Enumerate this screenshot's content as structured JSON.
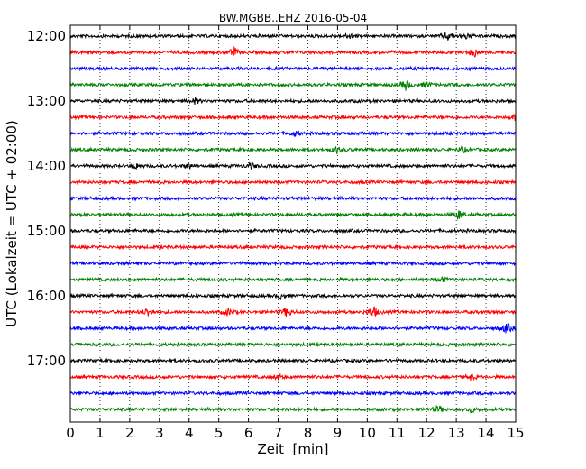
{
  "chart_data": {
    "type": "line",
    "title": "BW.MGBB..EHZ 2016-05-04",
    "xlabel": "Zeit  [min]",
    "ylabel": "UTC (Lokalzeit = UTC + 02:00)",
    "xlim": [
      0,
      15
    ],
    "x_ticks": [
      "0",
      "1",
      "2",
      "3",
      "4",
      "5",
      "6",
      "7",
      "8",
      "9",
      "10",
      "11",
      "12",
      "13",
      "14",
      "15"
    ],
    "y_tick_labels": [
      "12:00",
      "13:00",
      "14:00",
      "15:00",
      "16:00",
      "17:00"
    ],
    "grid": true,
    "series_colors": [
      "#000000",
      "#ff0000",
      "#0000ff",
      "#008000"
    ],
    "traces": [
      {
        "start": "12:00",
        "color": "#000000",
        "events": [
          {
            "min": 9.4,
            "amp": 3
          },
          {
            "min": 12.7,
            "amp": 5
          },
          {
            "min": 13.3,
            "amp": 3
          }
        ]
      },
      {
        "start": "12:15",
        "color": "#ff0000",
        "events": [
          {
            "min": 5.5,
            "amp": 5
          },
          {
            "min": 13.6,
            "amp": 5
          }
        ]
      },
      {
        "start": "12:30",
        "color": "#0000ff",
        "events": []
      },
      {
        "start": "12:45",
        "color": "#008000",
        "events": [
          {
            "min": 11.3,
            "amp": 6
          },
          {
            "min": 12.0,
            "amp": 3
          }
        ]
      },
      {
        "start": "13:00",
        "color": "#000000",
        "events": [
          {
            "min": 4.2,
            "amp": 3
          }
        ]
      },
      {
        "start": "13:15",
        "color": "#ff0000",
        "events": [
          {
            "min": 15.0,
            "amp": 4
          }
        ]
      },
      {
        "start": "13:30",
        "color": "#0000ff",
        "events": [
          {
            "min": 7.6,
            "amp": 3
          }
        ]
      },
      {
        "start": "13:45",
        "color": "#008000",
        "events": [
          {
            "min": 9.0,
            "amp": 4
          },
          {
            "min": 13.2,
            "amp": 3
          }
        ]
      },
      {
        "start": "14:00",
        "color": "#000000",
        "events": [
          {
            "min": 2.2,
            "amp": 3
          },
          {
            "min": 4.0,
            "amp": 3
          },
          {
            "min": 6.1,
            "amp": 3
          }
        ]
      },
      {
        "start": "14:15",
        "color": "#ff0000",
        "events": []
      },
      {
        "start": "14:30",
        "color": "#0000ff",
        "events": []
      },
      {
        "start": "14:45",
        "color": "#008000",
        "events": [
          {
            "min": 13.1,
            "amp": 5
          }
        ]
      },
      {
        "start": "15:00",
        "color": "#000000",
        "events": []
      },
      {
        "start": "15:15",
        "color": "#ff0000",
        "events": []
      },
      {
        "start": "15:30",
        "color": "#0000ff",
        "events": []
      },
      {
        "start": "15:45",
        "color": "#008000",
        "events": [
          {
            "min": 12.5,
            "amp": 3
          }
        ]
      },
      {
        "start": "16:00",
        "color": "#000000",
        "events": [
          {
            "min": 7.1,
            "amp": 3
          }
        ]
      },
      {
        "start": "16:15",
        "color": "#ff0000",
        "events": [
          {
            "min": 2.6,
            "amp": 5
          },
          {
            "min": 5.3,
            "amp": 4
          },
          {
            "min": 7.3,
            "amp": 6
          },
          {
            "min": 10.2,
            "amp": 7
          }
        ]
      },
      {
        "start": "16:30",
        "color": "#0000ff",
        "events": [
          {
            "min": 14.7,
            "amp": 6
          }
        ]
      },
      {
        "start": "16:45",
        "color": "#008000",
        "events": []
      },
      {
        "start": "17:00",
        "color": "#000000",
        "events": []
      },
      {
        "start": "17:15",
        "color": "#ff0000",
        "events": [
          {
            "min": 7.0,
            "amp": 3
          },
          {
            "min": 13.5,
            "amp": 3
          }
        ]
      },
      {
        "start": "17:30",
        "color": "#0000ff",
        "events": []
      },
      {
        "start": "17:45",
        "color": "#008000",
        "events": [
          {
            "min": 12.4,
            "amp": 4
          },
          {
            "min": 13.5,
            "amp": 3
          }
        ]
      }
    ]
  }
}
